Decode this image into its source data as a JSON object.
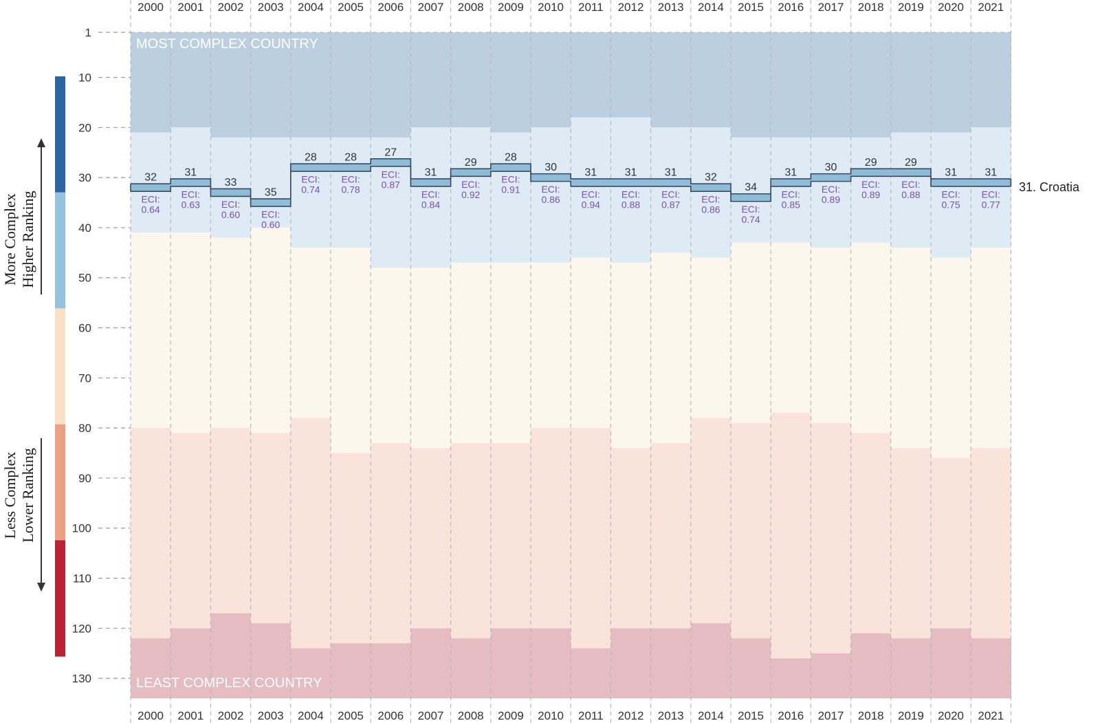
{
  "chart_data": {
    "type": "step-rank",
    "title": "",
    "country_label": "31. Croatia",
    "years": [
      "2000",
      "2001",
      "2002",
      "2003",
      "2004",
      "2005",
      "2006",
      "2007",
      "2008",
      "2009",
      "2010",
      "2011",
      "2012",
      "2013",
      "2014",
      "2015",
      "2016",
      "2017",
      "2018",
      "2019",
      "2020",
      "2021"
    ],
    "ranks": [
      32,
      31,
      33,
      35,
      28,
      28,
      27,
      31,
      29,
      28,
      30,
      31,
      31,
      31,
      32,
      34,
      31,
      30,
      29,
      29,
      31,
      31
    ],
    "rank_labels": [
      "32",
      "31",
      "33",
      "35",
      "28",
      "28",
      "27",
      "31",
      "29",
      "28",
      "30",
      "31",
      "31",
      "31",
      "32",
      "34",
      "31",
      "30",
      "29",
      "29",
      "31",
      "31"
    ],
    "eci_prefix": "ECI:",
    "eci": [
      "0.64",
      "0.63",
      "0.60",
      "0.60",
      "0.74",
      "0.78",
      "0.87",
      "0.84",
      "0.92",
      "0.91",
      "0.86",
      "0.94",
      "0.88",
      "0.87",
      "0.86",
      "0.74",
      "0.85",
      "0.89",
      "0.89",
      "0.88",
      "0.75",
      "0.77"
    ],
    "band_boundaries": {
      "top_band_end": [
        21,
        20,
        22,
        22,
        22,
        22,
        22,
        20,
        20,
        21,
        20,
        18,
        18,
        20,
        20,
        22,
        22,
        22,
        22,
        21,
        21,
        20
      ],
      "second_band_end": [
        41,
        41,
        42,
        40,
        44,
        44,
        48,
        48,
        47,
        47,
        47,
        46,
        47,
        45,
        46,
        43,
        43,
        44,
        43,
        44,
        46,
        44
      ],
      "middle_band_end": [
        80,
        81,
        80,
        81,
        78,
        85,
        83,
        84,
        83,
        83,
        80,
        80,
        84,
        83,
        78,
        79,
        77,
        79,
        81,
        84,
        86,
        84
      ],
      "fourth_band_end": [
        122,
        120,
        117,
        119,
        124,
        123,
        123,
        120,
        122,
        120,
        120,
        124,
        120,
        120,
        119,
        122,
        126,
        125,
        121,
        122,
        120,
        122
      ],
      "bottom_band_end": [
        134,
        134,
        134,
        134,
        134,
        134,
        134,
        134,
        134,
        134,
        134,
        134,
        134,
        134,
        134,
        134,
        134,
        134,
        134,
        134,
        134,
        134
      ]
    },
    "band_colors": [
      "#bccfe0",
      "#deebf4",
      "#fcf7ec",
      "#f9e3da",
      "#e4bcc2"
    ],
    "band_labels": {
      "top": "MOST COMPLEX COUNTRY",
      "bottom": "LEAST COMPLEX COUNTRY"
    },
    "y_ticks": [
      "1",
      "10",
      "20",
      "30",
      "40",
      "50",
      "60",
      "70",
      "80",
      "90",
      "100",
      "110",
      "120",
      "130"
    ],
    "y_tick_values": [
      1,
      10,
      20,
      30,
      40,
      50,
      60,
      70,
      80,
      90,
      100,
      110,
      120,
      130
    ],
    "ylim": [
      1,
      134
    ],
    "y_reversed": true,
    "side_labels": {
      "upper_line1": "More Complex",
      "upper_line2": "Higher Ranking",
      "lower_line1": "Less Complex",
      "lower_line2": "Lower Ranking"
    },
    "colorbar_colors": [
      "#2c65a4",
      "#93c2de",
      "#f9e2c3",
      "#eea084",
      "#bb2233"
    ],
    "line_color": "#3a4a5a",
    "marker_fill": "#8fbcd8",
    "grid": true
  }
}
